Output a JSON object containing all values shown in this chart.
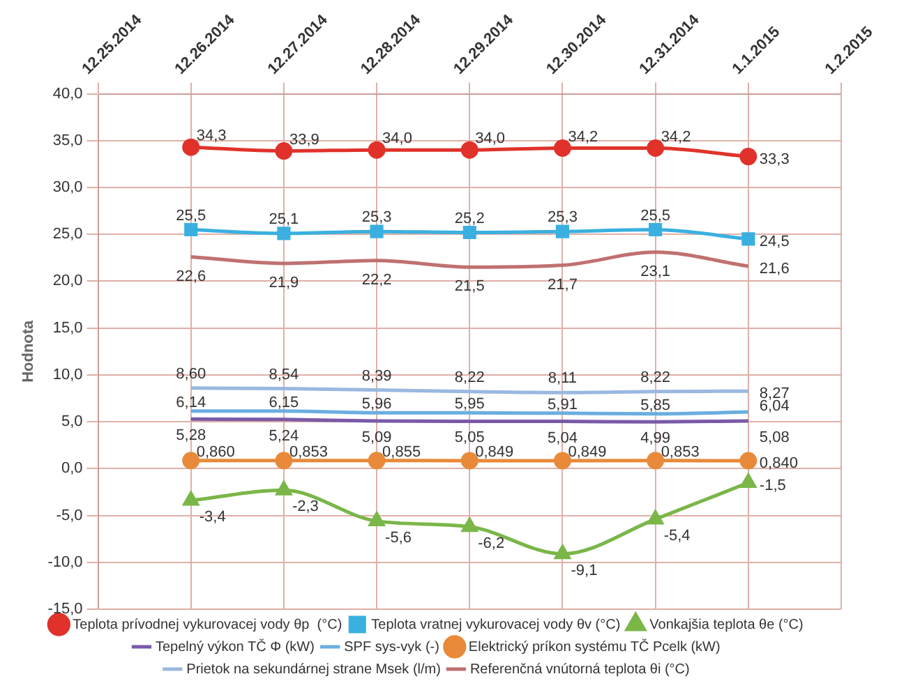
{
  "chart_data": {
    "type": "line",
    "ylabel": "Hodnota",
    "x": [
      "2014-12-26",
      "2014-12-27",
      "2014-12-28",
      "2014-12-29",
      "2014-12-30",
      "2014-12-31",
      "2015-01-01"
    ],
    "xlim": [
      "2014-12-25",
      "2015-01-02"
    ],
    "xticks": [
      {
        "value": "2014-12-25",
        "label": "12.25.2014"
      },
      {
        "value": "2014-12-26",
        "label": "12.26.2014"
      },
      {
        "value": "2014-12-27",
        "label": "12.27.2014"
      },
      {
        "value": "2014-12-28",
        "label": "12.28.2014"
      },
      {
        "value": "2014-12-29",
        "label": "12.29.2014"
      },
      {
        "value": "2014-12-30",
        "label": "12.30.2014"
      },
      {
        "value": "2014-12-31",
        "label": "12.31.2014"
      },
      {
        "value": "2015-01-01",
        "label": "1.1.2015"
      },
      {
        "value": "2015-01-02",
        "label": "1.2.2015"
      }
    ],
    "ylim": [
      -15,
      40
    ],
    "yticks": [
      {
        "value": -15,
        "label": "-15,0"
      },
      {
        "value": -10,
        "label": "-10,0"
      },
      {
        "value": -5,
        "label": "-5,0"
      },
      {
        "value": 0,
        "label": "0,0"
      },
      {
        "value": 5,
        "label": "5,0"
      },
      {
        "value": 10,
        "label": "10,0"
      },
      {
        "value": 15,
        "label": "15,0"
      },
      {
        "value": 20,
        "label": "20,0"
      },
      {
        "value": 25,
        "label": "25,0"
      },
      {
        "value": 30,
        "label": "30,0"
      },
      {
        "value": 35,
        "label": "35,0"
      },
      {
        "value": 40,
        "label": "40,0"
      }
    ],
    "grid": true,
    "legend": "bottom",
    "series": [
      {
        "name": "Teplota prívodnej vykurovacej vody θp  (°C)",
        "color": "#e0322a",
        "marker": "circle",
        "values": [
          34.3,
          33.9,
          34.0,
          34.0,
          34.2,
          34.2,
          33.3
        ],
        "value_labels": [
          "34,3",
          "33,9",
          "34,0",
          "34,0",
          "34,2",
          "34,2",
          "33,3"
        ]
      },
      {
        "name": "Teplota vratnej vykurovacej vody θv (°C)",
        "color": "#3ab0e0",
        "marker": "square",
        "values": [
          25.5,
          25.1,
          25.3,
          25.2,
          25.3,
          25.5,
          24.5
        ],
        "value_labels": [
          "25,5",
          "25,1",
          "25,3",
          "25,2",
          "25,3",
          "25,5",
          "24,5"
        ]
      },
      {
        "name": "Vonkajšia teplota θe (°C)",
        "color": "#7ab648",
        "marker": "triangle",
        "values": [
          -3.4,
          -2.3,
          -5.6,
          -6.2,
          -9.1,
          -5.4,
          -1.5
        ],
        "value_labels": [
          "-3,4",
          "-2,3",
          "-5,6",
          "-6,2",
          "-9,1",
          "-5,4",
          "-1,5"
        ]
      },
      {
        "name": "Tepelný výkon TČ Φ (kW)",
        "color": "#7a5aa8",
        "marker": "none",
        "values": [
          5.28,
          5.24,
          5.09,
          5.05,
          5.04,
          4.99,
          5.08
        ],
        "value_labels": [
          "5,28",
          "5,24",
          "5,09",
          "5,05",
          "5,04",
          "4,99",
          "5,08"
        ]
      },
      {
        "name": "SPF sys-vyk (-)",
        "color": "#6aaee0",
        "marker": "none",
        "values": [
          6.14,
          6.15,
          5.96,
          5.95,
          5.91,
          5.85,
          6.04
        ],
        "value_labels": [
          "6,14",
          "6,15",
          "5,96",
          "5,95",
          "5,91",
          "5,85",
          "6,04"
        ]
      },
      {
        "name": "Elektrický príkon systému TČ Pcelk (kW)",
        "color": "#e88a3a",
        "marker": "circle",
        "values": [
          0.86,
          0.853,
          0.855,
          0.849,
          0.849,
          0.853,
          0.84
        ],
        "value_labels": [
          "0,860",
          "0,853",
          "0,855",
          "0,849",
          "0,849",
          "0,853",
          "0,840"
        ]
      },
      {
        "name": "Prietok na sekundárnej strane Msek (l/m)",
        "color": "#9ab8e0",
        "marker": "none",
        "values": [
          8.6,
          8.54,
          8.39,
          8.22,
          8.11,
          8.22,
          8.27
        ],
        "value_labels": [
          "8,60",
          "8,54",
          "8,39",
          "8,22",
          "8,11",
          "8,22",
          "8,27"
        ]
      },
      {
        "name": "Referenčná vnútorná teplota θi (°C)",
        "color": "#c07070",
        "marker": "none",
        "values": [
          22.6,
          21.9,
          22.2,
          21.5,
          21.7,
          23.1,
          21.6
        ],
        "value_labels": [
          "22,6",
          "21,9",
          "22,2",
          "21,5",
          "21,7",
          "23,1",
          "21,6"
        ]
      }
    ]
  }
}
